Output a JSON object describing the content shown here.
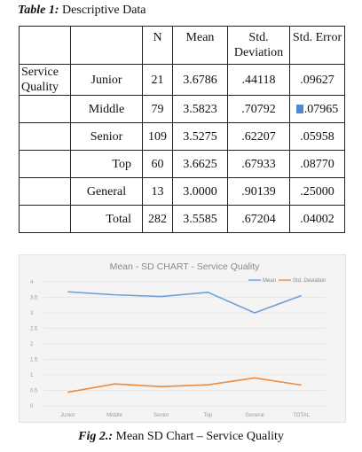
{
  "table_caption": {
    "label": "Table 1:",
    "text": "Descriptive Data"
  },
  "table": {
    "headers": [
      "",
      "",
      "N",
      "Mean",
      "Std. Deviation",
      "Std. Error"
    ],
    "group_label": "Service Quality",
    "rows": [
      {
        "level": "Junior",
        "n": "21",
        "mean": "3.6786",
        "sd": ".44118",
        "se": ".09627"
      },
      {
        "level": "Middle",
        "n": "79",
        "mean": "3.5823",
        "sd": ".70792",
        "se": ".07965"
      },
      {
        "level": "Senior",
        "n": "109",
        "mean": "3.5275",
        "sd": ".62207",
        "se": ".05958"
      },
      {
        "level": "Top",
        "n": "60",
        "mean": "3.6625",
        "sd": ".67933",
        "se": ".08770"
      },
      {
        "level": "General",
        "n": "13",
        "mean": "3.0000",
        "sd": ".90139",
        "se": ".25000"
      },
      {
        "level": "Total",
        "n": "282",
        "mean": "3.5585",
        "sd": ".67204",
        "se": ".04002"
      }
    ]
  },
  "chart_data": {
    "type": "line",
    "title": "Mean - SD CHART - Service Quality",
    "categories": [
      "Junior",
      "Middle",
      "Senior",
      "Top",
      "General",
      "TOTAL"
    ],
    "ylim": [
      0,
      4
    ],
    "yticks": [
      "0",
      "0.5",
      "1",
      "1.5",
      "2",
      "2.5",
      "3",
      "3.5",
      "4"
    ],
    "legend_position": "top-right",
    "grid": true,
    "series": [
      {
        "name": "Mean",
        "color": "#6fa0d8",
        "values": [
          3.6786,
          3.5823,
          3.5275,
          3.6625,
          3.0,
          3.5585
        ]
      },
      {
        "name": "Std. Deviation",
        "color": "#f08a3c",
        "values": [
          0.44118,
          0.70792,
          0.62207,
          0.67933,
          0.90139,
          0.67204
        ]
      }
    ]
  },
  "figure_caption": {
    "label": "Fig 2.:",
    "text": "Mean SD Chart – Service Quality"
  }
}
